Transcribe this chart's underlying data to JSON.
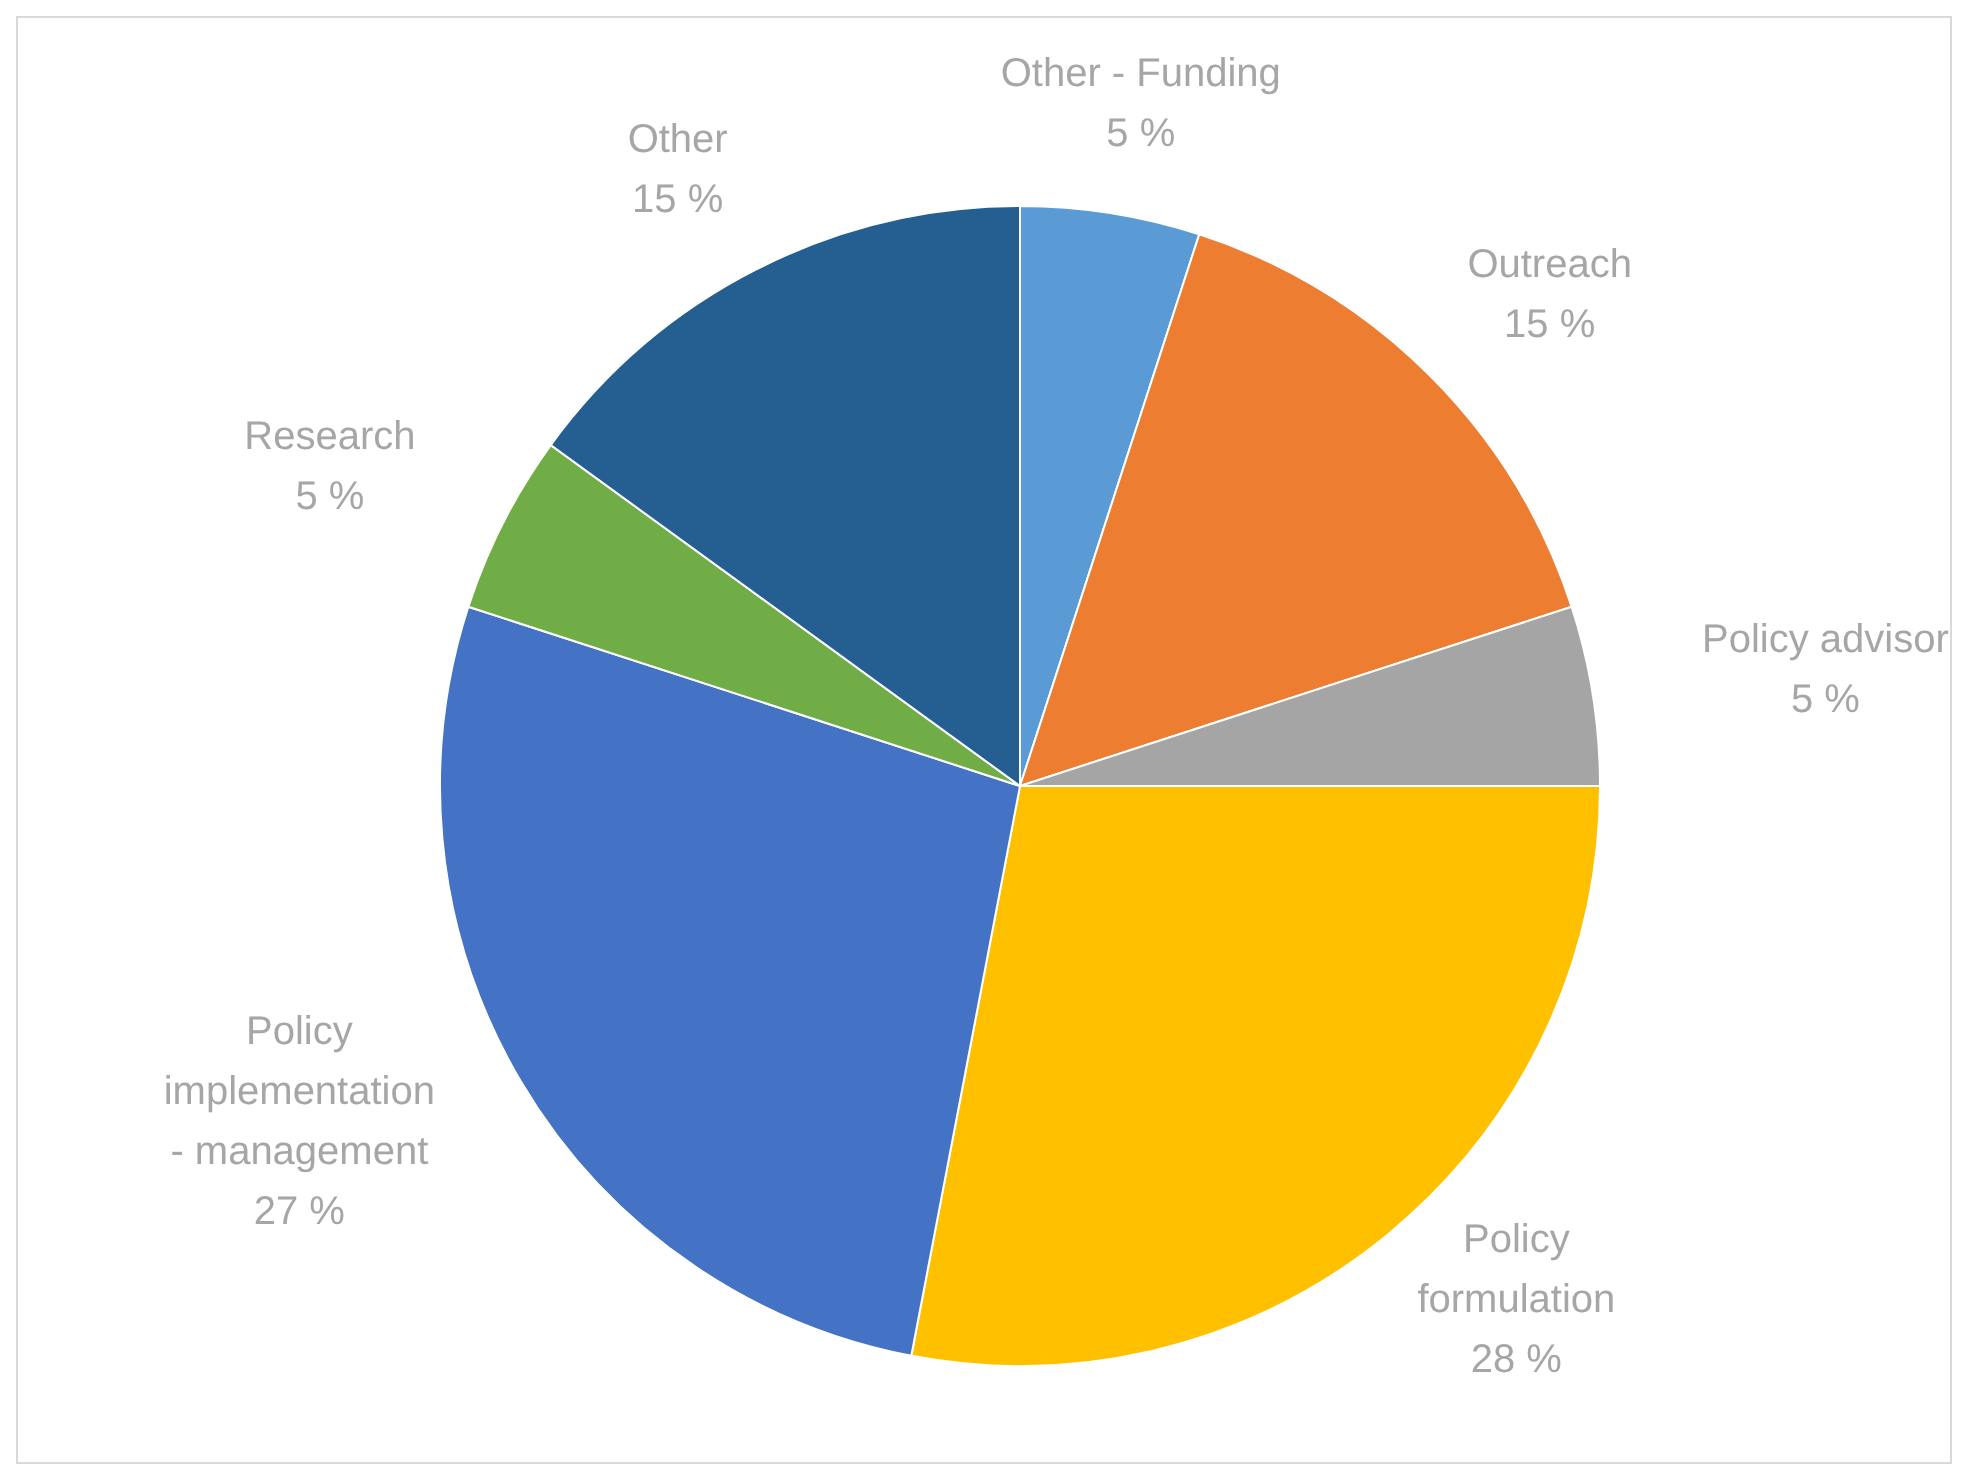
{
  "chart_data": {
    "type": "pie",
    "categories": [
      "Other - Funding",
      "Outreach",
      "Policy advisor",
      "Policy formulation",
      "Policy implementation - management",
      "Research",
      "Other"
    ],
    "values": [
      5,
      15,
      5,
      28,
      27,
      5,
      15
    ],
    "colors": [
      "#5b9bd5",
      "#ed7d31",
      "#a5a5a5",
      "#ffc000",
      "#4472c4",
      "#70ad47",
      "#255e91"
    ],
    "value_labels": [
      "5 %",
      "15 %",
      "5 %",
      "28 %",
      "27 %",
      "5 %",
      "15 %"
    ]
  }
}
